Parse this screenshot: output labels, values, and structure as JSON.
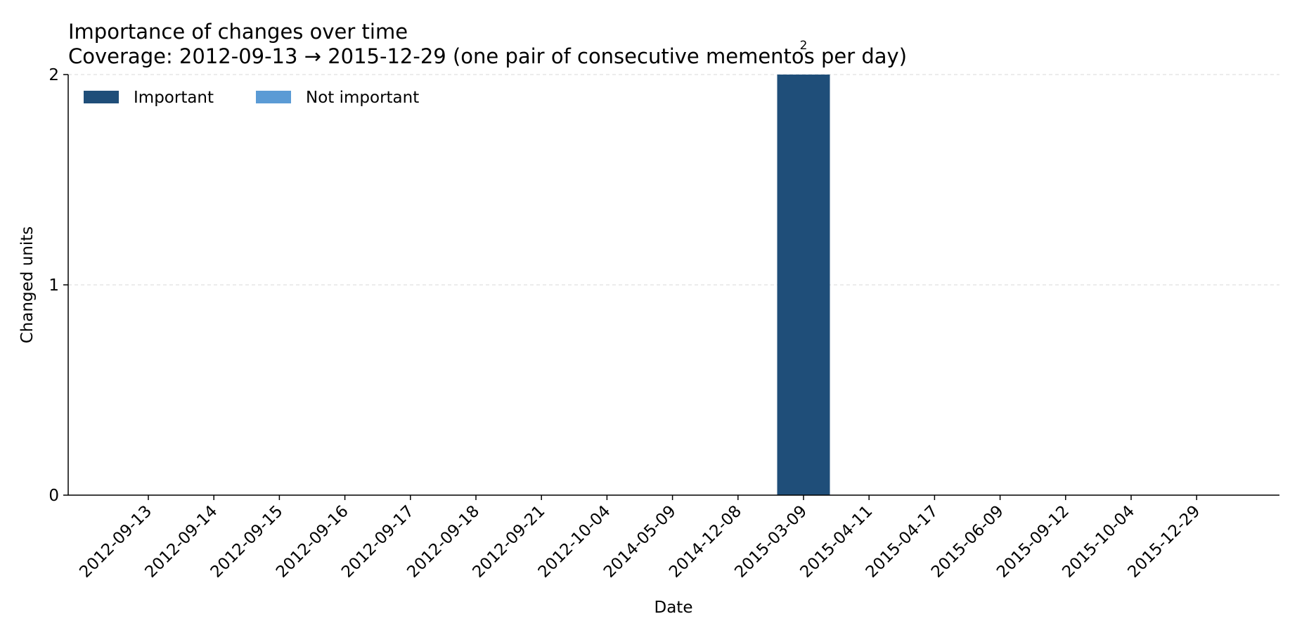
{
  "chart_data": {
    "type": "bar",
    "title": "Importance of changes over time",
    "subtitle": "Coverage: 2012-09-13 → 2015-12-29 (one pair of consecutive mementos per day)",
    "xlabel": "Date",
    "ylabel": "Changed units",
    "ylim": [
      0,
      2
    ],
    "yticks": [
      "0",
      "1",
      "2"
    ],
    "grid": "horizontal dashed",
    "legend_position": "top-left",
    "categories": [
      "2012-09-13",
      "2012-09-14",
      "2012-09-15",
      "2012-09-16",
      "2012-09-17",
      "2012-09-18",
      "2012-09-21",
      "2012-10-04",
      "2014-05-09",
      "2014-12-08",
      "2015-03-09",
      "2015-04-11",
      "2015-04-17",
      "2015-06-09",
      "2015-09-12",
      "2015-10-04",
      "2015-12-29"
    ],
    "series": [
      {
        "name": "Important",
        "color": "#1f4e79",
        "values": [
          0,
          0,
          0,
          0,
          0,
          0,
          0,
          0,
          0,
          0,
          2,
          0,
          0,
          0,
          0,
          0,
          0
        ]
      },
      {
        "name": "Not important",
        "color": "#5b9bd5",
        "values": [
          0,
          0,
          0,
          0,
          0,
          0,
          0,
          0,
          0,
          0,
          0,
          0,
          0,
          0,
          0,
          0,
          0
        ]
      }
    ],
    "data_labels": [
      {
        "category": "2015-03-09",
        "text": "2"
      }
    ]
  }
}
